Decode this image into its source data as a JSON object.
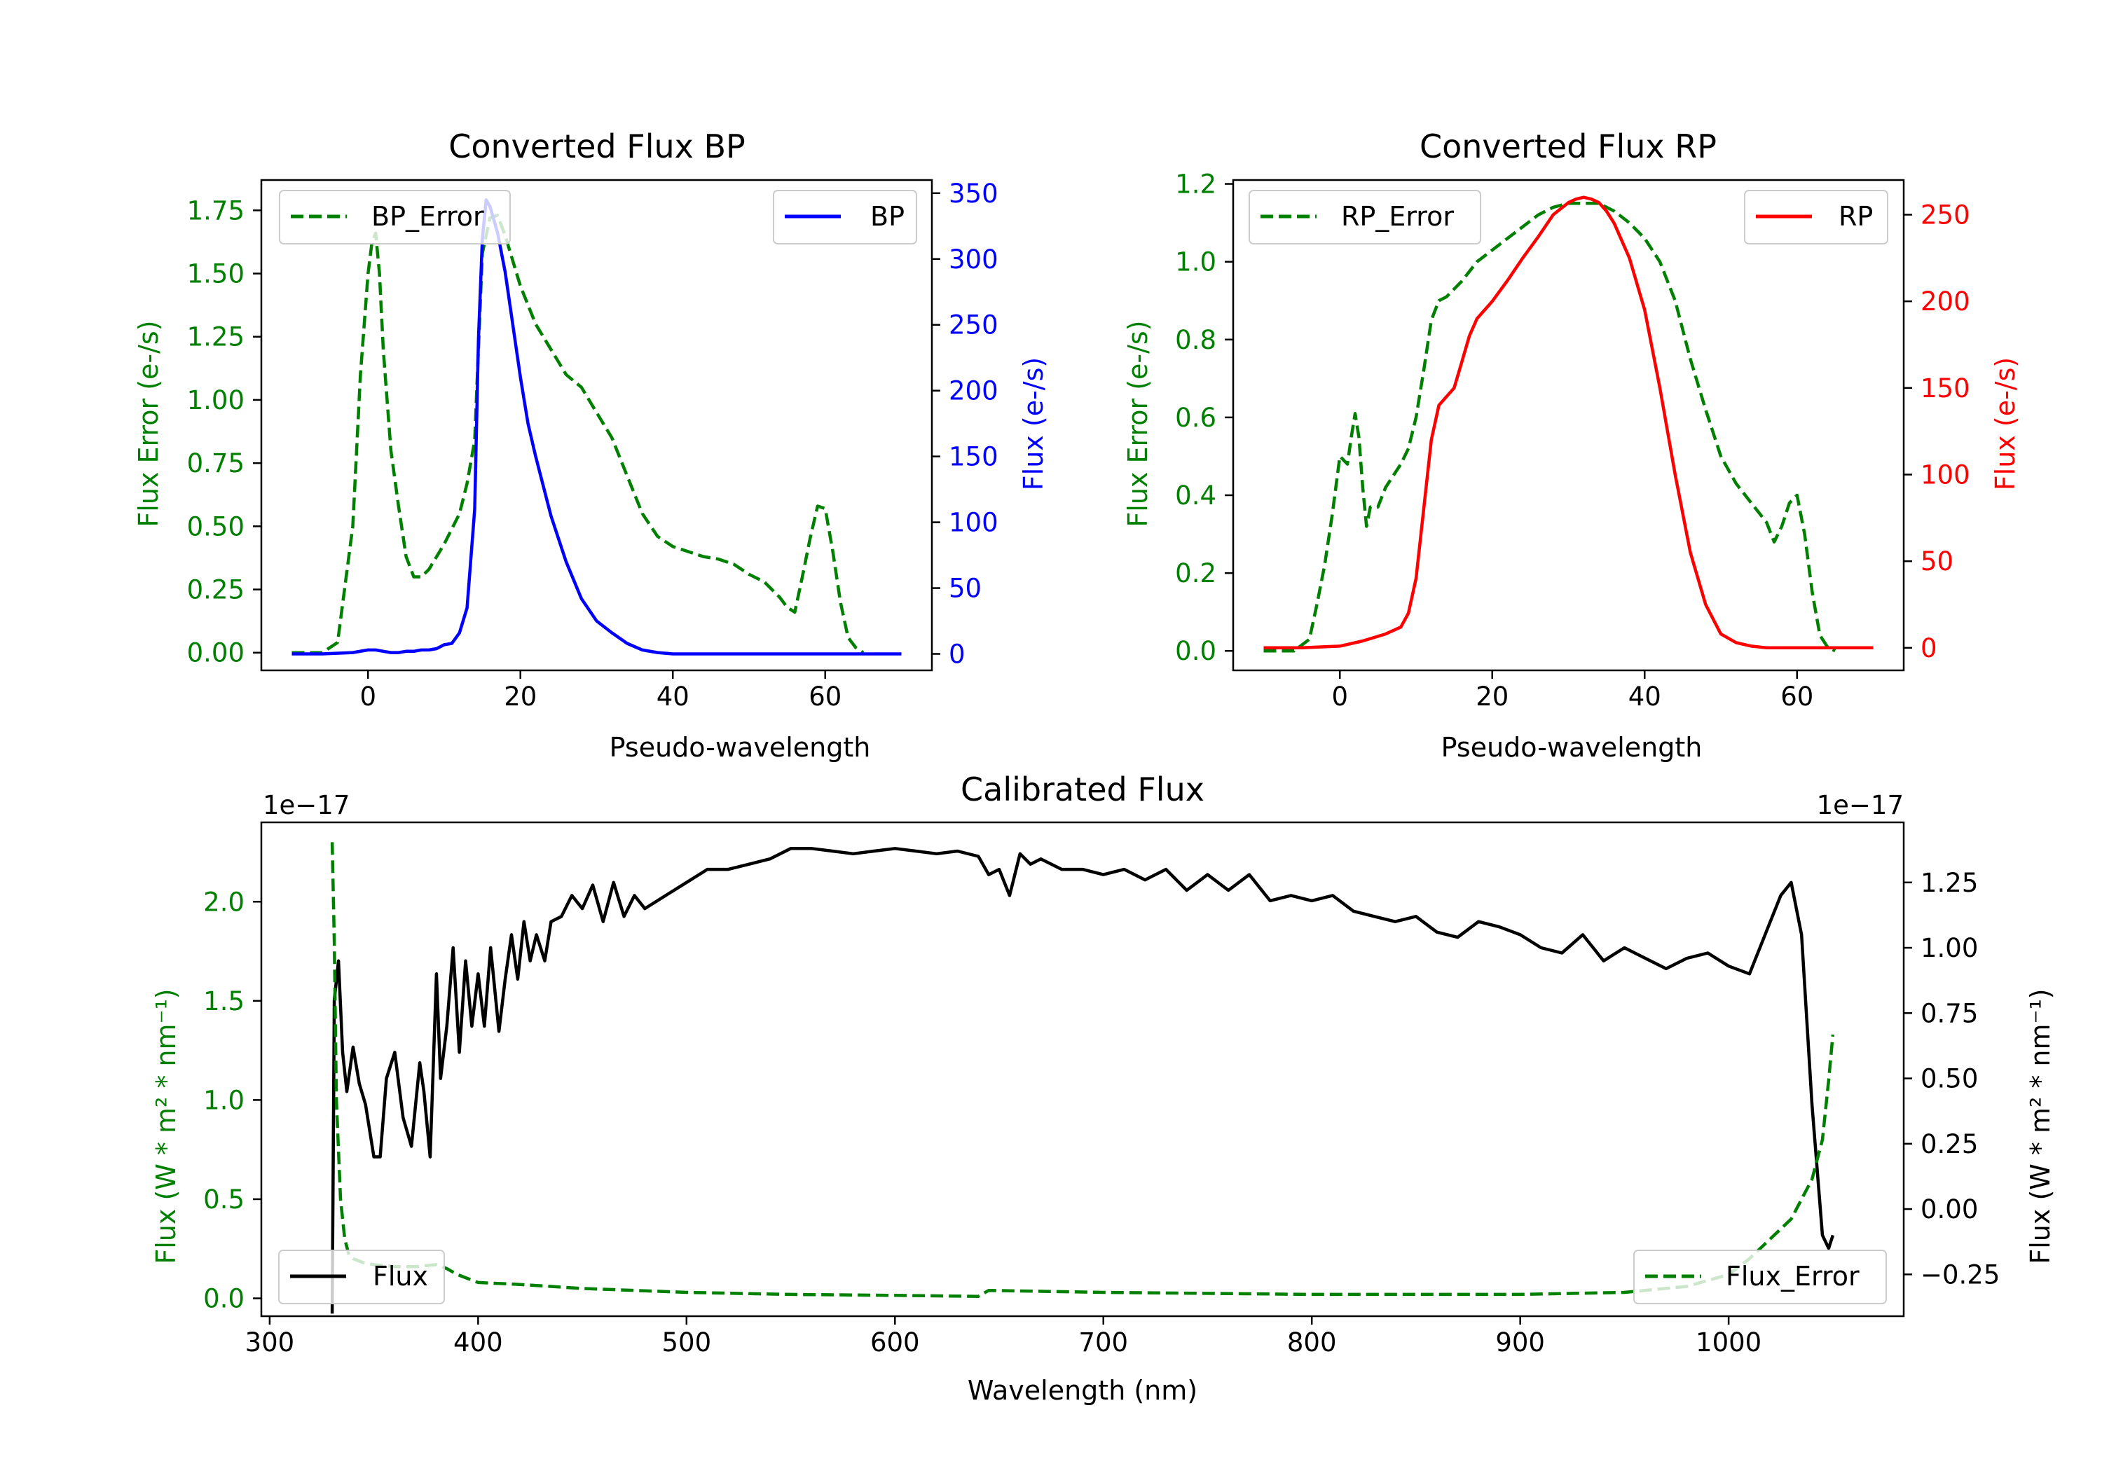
{
  "figure": {
    "background": "#ffffff"
  },
  "chart_data": [
    {
      "type": "line",
      "title": "Converted Flux BP",
      "xlabel": "Pseudo-wavelength",
      "xlim": [
        -14,
        74
      ],
      "xticks": [
        "0",
        "20",
        "40",
        "60"
      ],
      "xtick_values": [
        0,
        20,
        40,
        60
      ],
      "left_axis": {
        "label": "Flux Error (e-/s)",
        "color": "#008000",
        "ylim": [
          -0.07,
          1.87
        ],
        "ticks": [
          "0.00",
          "0.25",
          "0.50",
          "0.75",
          "1.00",
          "1.25",
          "1.50",
          "1.75"
        ],
        "tick_values": [
          0,
          0.25,
          0.5,
          0.75,
          1.0,
          1.25,
          1.5,
          1.75
        ]
      },
      "right_axis": {
        "label": "Flux (e-/s)",
        "color": "#0000ff",
        "ylim": [
          -12.5,
          360
        ],
        "ticks": [
          "0",
          "50",
          "100",
          "150",
          "200",
          "250",
          "300",
          "350"
        ],
        "tick_values": [
          0,
          50,
          100,
          150,
          200,
          250,
          300,
          350
        ]
      },
      "series": [
        {
          "name": "BP_Error",
          "axis": "left",
          "color": "#008000",
          "style": "dashed",
          "x": [
            -10,
            -6,
            -4,
            -2,
            -1,
            0,
            0.5,
            1,
            1.5,
            2,
            3,
            4,
            5,
            6,
            7,
            8,
            10,
            12,
            13,
            14,
            15,
            16,
            17,
            18,
            19,
            20,
            22,
            24,
            26,
            28,
            30,
            32,
            34,
            36,
            38,
            40,
            42,
            44,
            46,
            48,
            50,
            52,
            54,
            55,
            56,
            57,
            58,
            59,
            60,
            61,
            62,
            63,
            64,
            65
          ],
          "y": [
            0,
            0,
            0.04,
            0.5,
            1.1,
            1.5,
            1.62,
            1.66,
            1.5,
            1.2,
            0.8,
            0.58,
            0.38,
            0.3,
            0.3,
            0.33,
            0.43,
            0.55,
            0.67,
            0.84,
            1.58,
            1.72,
            1.73,
            1.65,
            1.55,
            1.45,
            1.3,
            1.2,
            1.1,
            1.05,
            0.95,
            0.85,
            0.7,
            0.55,
            0.46,
            0.42,
            0.4,
            0.38,
            0.37,
            0.35,
            0.31,
            0.28,
            0.22,
            0.18,
            0.16,
            0.3,
            0.45,
            0.58,
            0.57,
            0.4,
            0.2,
            0.06,
            0.02,
            0
          ]
        },
        {
          "name": "BP",
          "axis": "right",
          "color": "#0000ff",
          "style": "solid",
          "x": [
            -10,
            -6,
            -2,
            0,
            1,
            2,
            3,
            4,
            5,
            6,
            7,
            8,
            9,
            10,
            11,
            12,
            13,
            14,
            14.5,
            15,
            15.5,
            16,
            17,
            18,
            19,
            20,
            21,
            22,
            24,
            26,
            28,
            30,
            32,
            34,
            36,
            38,
            40,
            45,
            50,
            55,
            60,
            65,
            70
          ],
          "y": [
            0,
            0,
            1,
            3,
            3,
            2,
            1,
            1,
            2,
            2,
            3,
            3,
            4,
            7,
            8,
            16,
            35,
            110,
            240,
            315,
            345,
            340,
            320,
            290,
            250,
            210,
            175,
            150,
            105,
            70,
            42,
            25,
            16,
            8,
            3,
            1,
            0,
            0,
            0,
            0,
            0,
            0,
            0
          ]
        }
      ],
      "legend": [
        {
          "label": "BP_Error",
          "position": "upper-left"
        },
        {
          "label": "BP",
          "position": "upper-right"
        }
      ]
    },
    {
      "type": "line",
      "title": "Converted Flux RP",
      "xlabel": "Pseudo-wavelength",
      "xlim": [
        -14,
        74
      ],
      "xticks": [
        "0",
        "20",
        "40",
        "60"
      ],
      "xtick_values": [
        0,
        20,
        40,
        60
      ],
      "left_axis": {
        "label": "Flux Error (e-/s)",
        "color": "#008000",
        "ylim": [
          -0.05,
          1.21
        ],
        "ticks": [
          "0.0",
          "0.2",
          "0.4",
          "0.6",
          "0.8",
          "1.0",
          "1.2"
        ],
        "tick_values": [
          0,
          0.2,
          0.4,
          0.6,
          0.8,
          1.0,
          1.2
        ]
      },
      "right_axis": {
        "label": "Flux (e-/s)",
        "color": "#ff0000",
        "ylim": [
          -13,
          270
        ],
        "ticks": [
          "0",
          "50",
          "100",
          "150",
          "200",
          "250"
        ],
        "tick_values": [
          0,
          50,
          100,
          150,
          200,
          250
        ]
      },
      "series": [
        {
          "name": "RP_Error",
          "axis": "left",
          "color": "#008000",
          "style": "dashed",
          "x": [
            -10,
            -6,
            -4,
            -3,
            -2,
            -1,
            0,
            1,
            1.5,
            2,
            2.5,
            3,
            3.5,
            4,
            5,
            6,
            7,
            8,
            9,
            10,
            11,
            12,
            13,
            14,
            15,
            16,
            18,
            20,
            22,
            24,
            26,
            28,
            30,
            32,
            34,
            36,
            38,
            40,
            42,
            44,
            46,
            48,
            50,
            52,
            54,
            56,
            57,
            58,
            59,
            60,
            61,
            62,
            63,
            64,
            65
          ],
          "y": [
            0,
            0,
            0.03,
            0.12,
            0.22,
            0.35,
            0.5,
            0.48,
            0.55,
            0.61,
            0.55,
            0.42,
            0.32,
            0.37,
            0.37,
            0.42,
            0.45,
            0.48,
            0.52,
            0.6,
            0.72,
            0.85,
            0.9,
            0.91,
            0.93,
            0.95,
            1.0,
            1.03,
            1.06,
            1.09,
            1.12,
            1.14,
            1.15,
            1.15,
            1.15,
            1.13,
            1.1,
            1.06,
            1.0,
            0.9,
            0.75,
            0.62,
            0.5,
            0.43,
            0.38,
            0.33,
            0.28,
            0.32,
            0.38,
            0.4,
            0.3,
            0.15,
            0.04,
            0.01,
            0
          ]
        },
        {
          "name": "RP",
          "axis": "right",
          "color": "#ff0000",
          "style": "solid",
          "x": [
            -10,
            -5,
            0,
            3,
            6,
            8,
            9,
            10,
            11,
            12,
            13,
            14,
            15,
            16,
            17,
            18,
            20,
            22,
            24,
            26,
            28,
            30,
            31,
            32,
            33,
            34,
            35,
            36,
            38,
            40,
            42,
            44,
            46,
            48,
            50,
            52,
            54,
            56,
            58,
            60,
            65,
            70
          ],
          "y": [
            0,
            0,
            1,
            4,
            8,
            12,
            20,
            40,
            80,
            120,
            140,
            145,
            150,
            165,
            180,
            190,
            200,
            212,
            225,
            237,
            250,
            257,
            259,
            260,
            259,
            257,
            252,
            245,
            225,
            195,
            150,
            100,
            55,
            25,
            8,
            3,
            1,
            0,
            0,
            0,
            0,
            0
          ]
        }
      ],
      "legend": [
        {
          "label": "RP_Error",
          "position": "upper-left"
        },
        {
          "label": "RP",
          "position": "upper-right"
        }
      ]
    },
    {
      "type": "line",
      "title": "Calibrated Flux",
      "xlabel": "Wavelength (nm)",
      "xlim": [
        296,
        1084
      ],
      "xticks": [
        "300",
        "400",
        "500",
        "600",
        "700",
        "800",
        "900",
        "1000"
      ],
      "xtick_values": [
        300,
        400,
        500,
        600,
        700,
        800,
        900,
        1000
      ],
      "left_axis": {
        "label": "Flux (W * m² * nm⁻¹)",
        "color": "#008000",
        "offset_text": "1e−17",
        "ylim": [
          -0.09,
          2.4
        ],
        "ticks": [
          "0.0",
          "0.5",
          "1.0",
          "1.5",
          "2.0"
        ],
        "tick_values": [
          0,
          0.5,
          1.0,
          1.5,
          2.0
        ]
      },
      "right_axis": {
        "label": "Flux (W * m² * nm⁻¹)",
        "color": "#000000",
        "offset_text": "1e−17",
        "ylim": [
          -0.41,
          1.48
        ],
        "ticks": [
          "−0.25",
          "0.00",
          "0.25",
          "0.50",
          "0.75",
          "1.00",
          "1.25"
        ],
        "tick_values": [
          -0.25,
          0,
          0.25,
          0.5,
          0.75,
          1.0,
          1.25
        ]
      },
      "series": [
        {
          "name": "Flux",
          "axis": "right",
          "color": "#000000",
          "style": "solid",
          "x": [
            330,
            331,
            333,
            335,
            337,
            340,
            343,
            346,
            350,
            353,
            356,
            360,
            364,
            368,
            372,
            374,
            377,
            380,
            382,
            385,
            388,
            391,
            394,
            397,
            400,
            403,
            406,
            410,
            413,
            416,
            419,
            422,
            425,
            428,
            432,
            435,
            440,
            445,
            450,
            455,
            460,
            465,
            470,
            475,
            480,
            490,
            500,
            510,
            520,
            530,
            540,
            550,
            560,
            570,
            580,
            590,
            600,
            610,
            620,
            630,
            640,
            645,
            650,
            655,
            660,
            665,
            670,
            680,
            690,
            700,
            710,
            720,
            730,
            740,
            750,
            760,
            770,
            780,
            790,
            800,
            810,
            820,
            830,
            840,
            850,
            860,
            870,
            880,
            890,
            900,
            910,
            920,
            930,
            940,
            950,
            960,
            970,
            980,
            990,
            1000,
            1010,
            1020,
            1025,
            1030,
            1035,
            1040,
            1045,
            1048,
            1050
          ],
          "y": [
            -0.4,
            0.8,
            0.95,
            0.6,
            0.45,
            0.62,
            0.48,
            0.4,
            0.2,
            0.2,
            0.5,
            0.6,
            0.35,
            0.24,
            0.56,
            0.45,
            0.2,
            0.9,
            0.5,
            0.7,
            1.0,
            0.6,
            0.95,
            0.7,
            0.9,
            0.7,
            1.0,
            0.68,
            0.88,
            1.05,
            0.88,
            1.1,
            0.95,
            1.05,
            0.95,
            1.1,
            1.12,
            1.2,
            1.15,
            1.24,
            1.1,
            1.25,
            1.12,
            1.2,
            1.15,
            1.2,
            1.25,
            1.3,
            1.3,
            1.32,
            1.34,
            1.38,
            1.38,
            1.37,
            1.36,
            1.37,
            1.38,
            1.37,
            1.36,
            1.37,
            1.35,
            1.28,
            1.3,
            1.2,
            1.36,
            1.32,
            1.34,
            1.3,
            1.3,
            1.28,
            1.3,
            1.26,
            1.3,
            1.22,
            1.28,
            1.22,
            1.28,
            1.18,
            1.2,
            1.18,
            1.2,
            1.14,
            1.12,
            1.1,
            1.12,
            1.06,
            1.04,
            1.1,
            1.08,
            1.05,
            1.0,
            0.98,
            1.05,
            0.95,
            1.0,
            0.96,
            0.92,
            0.96,
            0.98,
            0.93,
            0.9,
            1.1,
            1.2,
            1.25,
            1.05,
            0.4,
            -0.1,
            -0.15,
            -0.1
          ]
        },
        {
          "name": "Flux_Error",
          "axis": "left",
          "color": "#008000",
          "style": "dashed",
          "x": [
            330,
            331,
            332,
            334,
            336,
            338,
            340,
            345,
            350,
            360,
            370,
            380,
            385,
            390,
            400,
            420,
            450,
            500,
            550,
            600,
            640,
            645,
            700,
            800,
            900,
            950,
            980,
            1000,
            1010,
            1020,
            1030,
            1040,
            1045,
            1048,
            1050
          ],
          "y": [
            2.3,
            1.8,
            1.0,
            0.5,
            0.3,
            0.22,
            0.2,
            0.18,
            0.17,
            0.16,
            0.16,
            0.17,
            0.15,
            0.12,
            0.08,
            0.07,
            0.05,
            0.03,
            0.02,
            0.015,
            0.01,
            0.04,
            0.03,
            0.02,
            0.02,
            0.03,
            0.06,
            0.12,
            0.2,
            0.3,
            0.4,
            0.6,
            0.8,
            1.1,
            1.33
          ]
        }
      ],
      "legend": [
        {
          "label": "Flux",
          "position": "lower-left"
        },
        {
          "label": "Flux_Error",
          "position": "lower-right"
        }
      ]
    }
  ]
}
